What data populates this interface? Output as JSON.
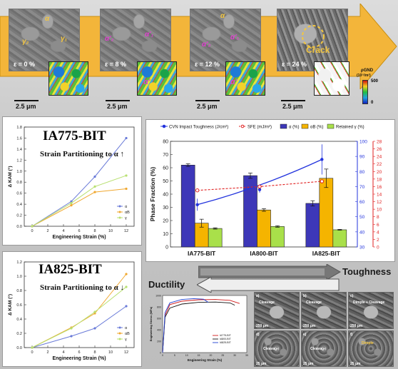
{
  "micrographs": {
    "tiles": [
      {
        "strain_text": "ε = 0 %",
        "scale_text": "2.5 μm",
        "labels": [
          "α",
          "γ₂",
          "γ₁"
        ]
      },
      {
        "strain_text": "ε = 8 %",
        "scale_text": "2.5 μm",
        "labels": [
          "α'₂",
          "α'₁",
          "α'"
        ]
      },
      {
        "strain_text": "ε = 12 %",
        "scale_text": "2.5 μm",
        "labels": [
          "α",
          "α'₂",
          "α'₁",
          "α'"
        ]
      },
      {
        "strain_text": "ε = 24 %",
        "scale_text": "2.5 μm",
        "labels": [
          "Crack"
        ]
      }
    ],
    "colorbar": {
      "label_line1": "ρGND",
      "label_line2": "(10¹²/m²)",
      "max": "500",
      "min": "0"
    }
  },
  "kam_panels": [
    {
      "title": "IA775-BIT",
      "statement": "Strain Partitioning to α ↑",
      "title_color": "#111111",
      "chart_data": {
        "type": "line",
        "x": [
          0,
          5,
          8,
          12
        ],
        "series": [
          {
            "name": "α",
            "values": [
              0.0,
              0.45,
              0.9,
              1.6
            ],
            "color": "#6a7bd8"
          },
          {
            "name": "αB",
            "values": [
              0.0,
              0.38,
              0.62,
              0.68
            ],
            "color": "#f0a830"
          },
          {
            "name": "γ",
            "values": [
              0.0,
              0.42,
              0.72,
              0.92
            ],
            "color": "#b8e070"
          }
        ],
        "xlabel": "Engineering Strain (%)",
        "ylabel": "Δ KAM (°)",
        "xlim": [
          -1,
          13
        ],
        "ylim": [
          0,
          1.8
        ],
        "yticks": [
          0.0,
          0.2,
          0.4,
          0.6,
          0.8,
          1.0,
          1.2,
          1.4,
          1.6,
          1.8
        ],
        "xticks": [
          0,
          2,
          4,
          6,
          8,
          10,
          12
        ],
        "legend": "bottom-right"
      }
    },
    {
      "title": "IA825-BIT",
      "statement": "Strain Partitioning to α ↓",
      "title_color": "#1538c8",
      "chart_data": {
        "type": "line",
        "x": [
          0,
          5,
          8,
          12
        ],
        "series": [
          {
            "name": "α",
            "values": [
              0.0,
              0.16,
              0.27,
              0.58
            ],
            "color": "#6a7bd8"
          },
          {
            "name": "αB",
            "values": [
              0.0,
              0.28,
              0.48,
              1.03
            ],
            "color": "#f0a830"
          },
          {
            "name": "γ",
            "values": [
              0.0,
              0.27,
              0.5,
              0.85
            ],
            "color": "#b8e070"
          }
        ],
        "xlabel": "Engineering Strain (%)",
        "ylabel": "Δ KAM (°)",
        "xlim": [
          -1,
          13
        ],
        "ylim": [
          0,
          1.2
        ],
        "yticks": [
          0.0,
          0.2,
          0.4,
          0.6,
          0.8,
          1.0,
          1.2
        ],
        "xticks": [
          0,
          2,
          4,
          6,
          8,
          10,
          12
        ],
        "legend": "bottom-right"
      }
    }
  ],
  "main_chart": {
    "chart_data": {
      "type": "bar",
      "categories": [
        "IA775-BIT",
        "IA800-BIT",
        "IA825-BIT"
      ],
      "series": [
        {
          "name": "α (%)",
          "values": [
            62,
            54,
            33
          ],
          "errors": [
            1,
            2,
            2
          ],
          "color": "#3d37b8"
        },
        {
          "name": "αB (%)",
          "values": [
            18,
            28,
            52
          ],
          "errors": [
            3,
            1,
            7
          ],
          "color": "#f5b400"
        },
        {
          "name": "Retained γ (%)",
          "values": [
            14,
            15.5,
            13
          ],
          "errors": [
            0.5,
            0.6,
            0.3
          ],
          "color": "#a9e04a"
        }
      ],
      "toughness": {
        "name": "CVN Impact Toughness (J/cm²)",
        "values": [
          58,
          68,
          88
        ],
        "errors": [
          4,
          2,
          10
        ],
        "color": "#2233dd"
      },
      "sfe": {
        "name": "SFE (mJ/m²)",
        "values": [
          15,
          16,
          17.4
        ],
        "color": "#e02020"
      },
      "ylabel": "Phase Fraction (%)",
      "ylim": [
        0,
        80
      ],
      "yticks": [
        0,
        10,
        20,
        30,
        40,
        50,
        60,
        70,
        80
      ],
      "y2_ticks": [
        30,
        40,
        50,
        60,
        70,
        80,
        90,
        100
      ],
      "y2_lim": [
        30,
        100
      ],
      "y3_ticks": [
        0,
        2,
        4,
        6,
        8,
        10,
        12,
        14,
        16,
        18,
        20,
        22,
        24,
        26,
        28
      ],
      "y3_lim": [
        0,
        28
      ],
      "legend": "top"
    }
  },
  "arrows": {
    "right_word": "Toughness",
    "left_word": "Ductility"
  },
  "stress_strain": {
    "chart_data": {
      "type": "line",
      "xlabel": "Engineering Strain (%)",
      "ylabel": "Engineering Stress (MPa)",
      "xlim": [
        0,
        35
      ],
      "ylim": [
        0,
        1000
      ],
      "series": [
        {
          "name": "IA775-BIT",
          "color": "#d01818",
          "points": [
            [
              0,
              0
            ],
            [
              1,
              650
            ],
            [
              3,
              840
            ],
            [
              8,
              900
            ],
            [
              15,
              925
            ],
            [
              22,
              930
            ],
            [
              28,
              915
            ],
            [
              32,
              860
            ]
          ]
        },
        {
          "name": "IA800-BIT",
          "color": "#111111",
          "points": [
            [
              0,
              0
            ],
            [
              1,
              620
            ],
            [
              3,
              780
            ],
            [
              8,
              850
            ],
            [
              15,
              880
            ],
            [
              22,
              885
            ],
            [
              28,
              870
            ],
            [
              30,
              830
            ]
          ]
        },
        {
          "name": "IA825-BIT",
          "color": "#2040d0",
          "points": [
            [
              0,
              0
            ],
            [
              1,
              700
            ],
            [
              3,
              870
            ],
            [
              8,
              930
            ],
            [
              13,
              945
            ],
            [
              17,
              935
            ],
            [
              19,
              880
            ]
          ]
        }
      ]
    }
  },
  "fractographs": [
    {
      "letter": "a)",
      "caption": "Cleavage",
      "scale": "250 μm"
    },
    {
      "letter": "b)",
      "caption": "Cleavage",
      "scale": "250 μm"
    },
    {
      "letter": "c)",
      "caption": "Dimple + Cleavage",
      "scale": "250 μm"
    },
    {
      "letter": "d)",
      "caption": "Cleavage",
      "scale": "25 μm"
    },
    {
      "letter": "e)",
      "caption": "Cleavage",
      "scale": "25 μm"
    },
    {
      "letter": "f)",
      "caption": "Dimple",
      "scale": "25 μm"
    }
  ]
}
